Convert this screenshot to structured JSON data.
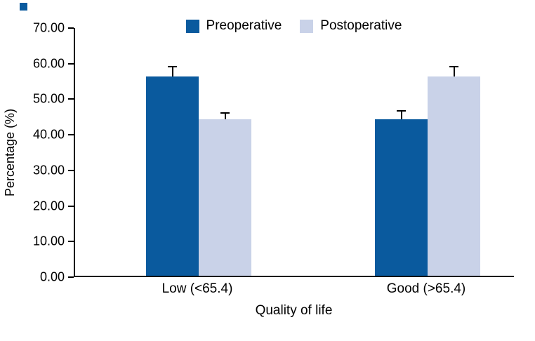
{
  "figure": {
    "corner_marker_color": "#0a5a9e"
  },
  "chart_data": {
    "type": "bar",
    "title": "",
    "xlabel": "Quality of life",
    "ylabel": "Percentage (%)",
    "ylim": [
      0,
      70
    ],
    "ytick_labels": [
      "0.00",
      "10.00",
      "20.00",
      "30.00",
      "40.00",
      "50.00",
      "60.00",
      "70.00"
    ],
    "categories": [
      "Low (<65.4)",
      "Good (>65.4)"
    ],
    "series": [
      {
        "name": "Preoperative",
        "color": "#0a5a9e",
        "values": [
          56,
          44
        ],
        "errors_up": [
          3,
          2.5
        ]
      },
      {
        "name": "Postoperative",
        "color": "#c9d2e8",
        "values": [
          44,
          56
        ],
        "errors_up": [
          2,
          3
        ]
      }
    ],
    "grid": false,
    "legend_position": "top-center",
    "axis_color": "#000000",
    "error_bar_color": "#000000"
  }
}
